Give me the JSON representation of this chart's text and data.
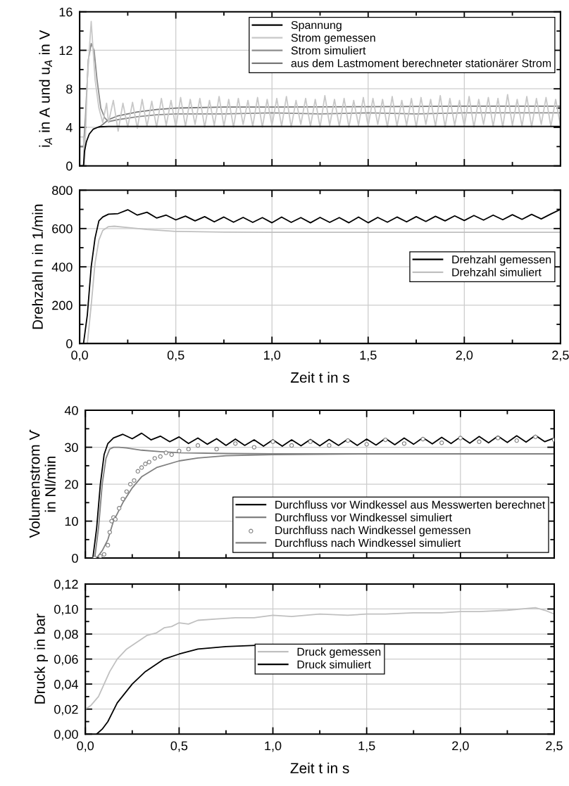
{
  "chart_data": [
    {
      "type": "line",
      "ylabel": "i$_{A}$ in A und u$_{A}$ in V",
      "xlim": [
        0,
        2.5
      ],
      "xticks": [
        0,
        {
          "value": 0.25,
          "label": null
        },
        0.5,
        {
          "value": 0.75,
          "label": null
        },
        1,
        {
          "value": 1.25,
          "label": null
        },
        1.5,
        {
          "value": 1.75,
          "label": null
        },
        2,
        {
          "value": 2.25,
          "label": null
        },
        2.5
      ],
      "ylim": [
        0,
        16
      ],
      "yticks": [
        0,
        {
          "value": 2,
          "label": null
        },
        4,
        {
          "value": 6,
          "label": null
        },
        8,
        {
          "value": 10,
          "label": null
        },
        12,
        {
          "value": 14,
          "label": null
        },
        16
      ],
      "tick_labels": "y",
      "grid": true,
      "legend": "top right",
      "series": [
        {
          "name": "Spannung",
          "color": "#000000",
          "x": [
            0,
            0.02,
            0.025,
            0.035,
            0.05,
            0.07,
            0.1,
            0.15,
            0.3,
            0.5,
            1.0,
            1.5,
            2.0,
            2.5
          ],
          "values": [
            0,
            0,
            1.5,
            2.5,
            3.3,
            3.8,
            4.05,
            4.1,
            4.1,
            4.1,
            4.1,
            4.1,
            4.1,
            4.1
          ]
        },
        {
          "name": "Strom gemessen",
          "color": "#c8c8c8",
          "x": [
            0,
            0.02,
            0.025,
            0.04,
            0.06,
            0.07,
            0.08,
            0.1,
            0.12,
            0.14,
            0.15,
            0.175,
            0.2,
            0.225,
            0.25,
            0.275,
            0.3,
            0.325,
            0.35,
            0.375,
            0.4,
            0.425,
            0.45,
            0.475,
            0.5,
            0.525,
            0.55,
            0.575,
            0.6,
            0.625,
            0.65,
            0.675,
            0.7,
            0.725,
            0.75,
            0.775,
            0.8,
            0.825,
            0.85,
            0.875,
            0.9,
            0.925,
            0.95,
            0.975,
            1.0,
            1.025,
            1.05,
            1.075,
            1.1,
            1.125,
            1.15,
            1.175,
            1.2,
            1.225,
            1.25,
            1.275,
            1.3,
            1.325,
            1.35,
            1.375,
            1.4,
            1.425,
            1.45,
            1.475,
            1.5,
            1.525,
            1.55,
            1.575,
            1.6,
            1.625,
            1.65,
            1.675,
            1.7,
            1.725,
            1.75,
            1.775,
            1.8,
            1.825,
            1.85,
            1.875,
            1.9,
            1.925,
            1.95,
            1.975,
            2.0,
            2.025,
            2.05,
            2.075,
            2.1,
            2.125,
            2.15,
            2.175,
            2.2,
            2.225,
            2.25,
            2.275,
            2.3,
            2.325,
            2.35,
            2.375,
            2.4,
            2.425,
            2.45,
            2.475,
            2.5
          ],
          "values": [
            3,
            3,
            0,
            9,
            15,
            12,
            9,
            6,
            4.5,
            6.5,
            4.5,
            6.8,
            3.6,
            6.5,
            4.0,
            6.6,
            3.9,
            6.9,
            4.1,
            6.7,
            4.0,
            7.0,
            4.2,
            6.8,
            4.0,
            7.1,
            4.1,
            6.9,
            4.3,
            7.0,
            4.0,
            6.8,
            4.2,
            7.2,
            4.1,
            6.9,
            4.0,
            7.0,
            4.3,
            6.8,
            4.1,
            7.1,
            4.0,
            6.9,
            4.2,
            7.0,
            4.1,
            7.2,
            4.0,
            6.8,
            4.3,
            7.0,
            4.1,
            6.9,
            4.0,
            7.3,
            4.2,
            6.9,
            4.1,
            7.0,
            4.0,
            6.8,
            4.2,
            7.1,
            4.1,
            7.0,
            4.3,
            6.9,
            4.0,
            7.2,
            4.1,
            6.8,
            4.2,
            7.0,
            4.0,
            7.1,
            4.3,
            6.9,
            4.1,
            7.3,
            4.0,
            7.0,
            4.2,
            6.8,
            4.1,
            7.2,
            4.0,
            6.9,
            4.3,
            7.1,
            4.1,
            7.0,
            4.0,
            7.4,
            4.2,
            6.9,
            4.1,
            7.2,
            4.0,
            7.0,
            4.3,
            7.1,
            4.1,
            6.9,
            4.2
          ]
        },
        {
          "name": "Strom simuliert",
          "color": "#8c8c8c",
          "x": [
            0,
            0.02,
            0.03,
            0.045,
            0.06,
            0.075,
            0.09,
            0.11,
            0.13,
            0.15,
            0.2,
            0.3,
            0.4,
            0.5,
            0.75,
            1.0,
            1.25,
            1.5,
            1.75,
            2.0,
            2.25,
            2.5
          ],
          "values": [
            2,
            2,
            5,
            11,
            12.7,
            12,
            9,
            6,
            5,
            4.6,
            4.8,
            5.1,
            5.3,
            5.4,
            5.4,
            5.5,
            5.4,
            5.5,
            5.4,
            5.5,
            5.5,
            5.5
          ]
        },
        {
          "name": "aus dem Lastmoment berechneter stationärer Strom",
          "color": "#787878",
          "x": [
            0.1,
            0.12,
            0.15,
            0.2,
            0.3,
            0.4,
            0.5,
            0.75,
            1.0,
            1.5,
            2.0,
            2.5
          ],
          "values": [
            4,
            4.3,
            4.8,
            5.2,
            5.6,
            5.85,
            6,
            6.1,
            6.1,
            6.15,
            6.2,
            6.2
          ]
        }
      ]
    },
    {
      "type": "line",
      "xlabel": "Zeit t in s",
      "ylabel": "Drehzahl n in 1/min",
      "xlim": [
        0,
        2.5
      ],
      "xticks": [
        {
          "value": 0,
          "label": "0,0"
        },
        {
          "value": 0.25,
          "label": null
        },
        {
          "value": 0.5,
          "label": "0,5"
        },
        {
          "value": 0.75,
          "label": null
        },
        {
          "value": 1,
          "label": "1,0"
        },
        {
          "value": 1.25,
          "label": null
        },
        {
          "value": 1.5,
          "label": "1,5"
        },
        {
          "value": 1.75,
          "label": null
        },
        {
          "value": 2,
          "label": "2,0"
        },
        {
          "value": 2.25,
          "label": null
        },
        {
          "value": 2.5,
          "label": "2,5"
        }
      ],
      "ylim": [
        0,
        800
      ],
      "yticks": [
        0,
        {
          "value": 100,
          "label": null
        },
        200,
        {
          "value": 300,
          "label": null
        },
        400,
        {
          "value": 500,
          "label": null
        },
        600,
        {
          "value": 700,
          "label": null
        },
        800
      ],
      "grid": true,
      "legend": "right",
      "series": [
        {
          "name": "Drehzahl gemessen",
          "color": "#000000",
          "x": [
            0.02,
            0.04,
            0.06,
            0.08,
            0.1,
            0.12,
            0.15,
            0.2,
            0.25,
            0.3,
            0.35,
            0.4,
            0.45,
            0.5,
            0.55,
            0.6,
            0.65,
            0.7,
            0.75,
            0.8,
            0.85,
            0.9,
            0.95,
            1.0,
            1.05,
            1.1,
            1.15,
            1.2,
            1.25,
            1.3,
            1.35,
            1.4,
            1.45,
            1.5,
            1.55,
            1.6,
            1.65,
            1.7,
            1.75,
            1.8,
            1.85,
            1.9,
            1.95,
            2.0,
            2.05,
            2.1,
            2.15,
            2.2,
            2.25,
            2.3,
            2.35,
            2.4,
            2.45,
            2.5
          ],
          "values": [
            0,
            150,
            400,
            550,
            640,
            660,
            675,
            678,
            698,
            670,
            685,
            655,
            670,
            645,
            665,
            640,
            662,
            635,
            660,
            633,
            658,
            632,
            657,
            630,
            660,
            632,
            657,
            630,
            658,
            632,
            657,
            630,
            660,
            630,
            658,
            633,
            660,
            635,
            662,
            637,
            664,
            640,
            666,
            642,
            668,
            644,
            670,
            646,
            672,
            648,
            674,
            650,
            676,
            700
          ]
        },
        {
          "name": "Drehzahl simuliert",
          "color": "#c0c0c0",
          "x": [
            0.04,
            0.06,
            0.08,
            0.1,
            0.12,
            0.15,
            0.18,
            0.25,
            0.35,
            0.5,
            0.75,
            1.0,
            1.5,
            2.0,
            2.5
          ],
          "values": [
            0,
            200,
            420,
            540,
            590,
            610,
            612,
            605,
            595,
            585,
            581,
            580,
            580,
            580,
            580
          ]
        }
      ]
    },
    {
      "type": "line",
      "ylabel": "Volumenstrom V̇\nin Nl/min",
      "xlim": [
        0,
        2.5
      ],
      "xticks": [
        0,
        {
          "value": 0.25,
          "label": null
        },
        0.5,
        {
          "value": 0.75,
          "label": null
        },
        1,
        {
          "value": 1.25,
          "label": null
        },
        1.5,
        {
          "value": 1.75,
          "label": null
        },
        2,
        {
          "value": 2.25,
          "label": null
        },
        2.5
      ],
      "ylim": [
        0,
        40
      ],
      "yticks": [
        0,
        {
          "value": 5,
          "label": null
        },
        10,
        {
          "value": 15,
          "label": null
        },
        20,
        {
          "value": 25,
          "label": null
        },
        30,
        {
          "value": 35,
          "label": null
        },
        40
      ],
      "tick_labels": "y",
      "grid": true,
      "legend": "bottom right",
      "series": [
        {
          "name": "Durchfluss vor Windkessel aus Messwerten berechnet",
          "color": "#000000",
          "x": [
            0.04,
            0.06,
            0.08,
            0.1,
            0.12,
            0.15,
            0.2,
            0.25,
            0.3,
            0.35,
            0.4,
            0.45,
            0.5,
            0.55,
            0.6,
            0.65,
            0.7,
            0.75,
            0.8,
            0.85,
            0.9,
            0.95,
            1.0,
            1.05,
            1.1,
            1.15,
            1.2,
            1.25,
            1.3,
            1.35,
            1.4,
            1.45,
            1.5,
            1.55,
            1.6,
            1.65,
            1.7,
            1.75,
            1.8,
            1.85,
            1.9,
            1.95,
            2.0,
            2.05,
            2.1,
            2.15,
            2.2,
            2.25,
            2.3,
            2.35,
            2.4,
            2.45,
            2.5
          ],
          "values": [
            0,
            8,
            20,
            28,
            31,
            32.5,
            33.5,
            32.3,
            33.8,
            32,
            33,
            31.5,
            32.8,
            31,
            32.5,
            30.8,
            32.3,
            30.5,
            32.2,
            30.5,
            32,
            30.3,
            32,
            30.3,
            32,
            30.4,
            32.1,
            30.4,
            32.1,
            30.5,
            32.2,
            30.5,
            32.2,
            30.6,
            32.4,
            30.7,
            32.5,
            30.8,
            32.6,
            30.9,
            32.7,
            31,
            32.8,
            31.1,
            32.9,
            31.2,
            33,
            31.3,
            33.1,
            31.4,
            33.2,
            31.5,
            32.5
          ]
        },
        {
          "name": "Durchfluss vor Windkessel simuliert",
          "color": "#808080",
          "x": [
            0.05,
            0.07,
            0.09,
            0.11,
            0.13,
            0.15,
            0.18,
            0.22,
            0.3,
            0.4,
            0.5,
            0.75,
            1.0,
            1.5,
            2.0,
            2.5
          ],
          "values": [
            0,
            8,
            20,
            27,
            29.5,
            30,
            30,
            29.8,
            29.2,
            28.8,
            28.5,
            28.3,
            28.2,
            28.2,
            28.2,
            28.2
          ]
        },
        {
          "name": "Durchfluss nach Windkessel gemessen",
          "type": "scatter",
          "marker": "circle",
          "color": "#808080",
          "x": [
            0.05,
            0.08,
            0.1,
            0.12,
            0.13,
            0.14,
            0.15,
            0.16,
            0.18,
            0.2,
            0.22,
            0.24,
            0.26,
            0.28,
            0.3,
            0.32,
            0.34,
            0.37,
            0.4,
            0.43,
            0.46,
            0.5,
            0.55,
            0.6,
            0.7,
            0.8,
            0.9,
            1.0,
            1.1,
            1.2,
            1.3,
            1.4,
            1.5,
            1.6,
            1.7,
            1.8,
            1.9,
            2.0,
            2.1,
            2.2,
            2.3,
            2.4,
            2.5
          ],
          "values": [
            0,
            0.5,
            1,
            3.5,
            7,
            10,
            11,
            10.5,
            13.5,
            16,
            18,
            20,
            21,
            23.5,
            24.5,
            25.5,
            26,
            27,
            27.5,
            28.5,
            28,
            29,
            29.5,
            30.5,
            29.5,
            31,
            30,
            31.5,
            30.5,
            31.5,
            30.5,
            31.8,
            30.8,
            32,
            31,
            32.2,
            31.2,
            32.5,
            31.5,
            32.5,
            31.8,
            32.8,
            32
          ]
        },
        {
          "name": "Durchfluss nach Windkessel simuliert",
          "color": "#808080",
          "x": [
            0.06,
            0.09,
            0.12,
            0.15,
            0.2,
            0.25,
            0.3,
            0.38,
            0.5,
            0.6,
            0.75,
            1.0,
            1.5,
            2.0,
            2.5
          ],
          "values": [
            0,
            2,
            5,
            10,
            15,
            19,
            22,
            24.5,
            26.3,
            27.1,
            27.7,
            28,
            28.2,
            28.2,
            28.2
          ]
        }
      ]
    },
    {
      "type": "line",
      "xlabel": "Zeit t in s",
      "ylabel": "Druck p in bar",
      "xlim": [
        0,
        2.5
      ],
      "xticks": [
        {
          "value": 0,
          "label": "0,0"
        },
        {
          "value": 0.25,
          "label": null
        },
        {
          "value": 0.5,
          "label": "0,5"
        },
        {
          "value": 0.75,
          "label": null
        },
        {
          "value": 1,
          "label": "1,0"
        },
        {
          "value": 1.25,
          "label": null
        },
        {
          "value": 1.5,
          "label": "1,5"
        },
        {
          "value": 1.75,
          "label": null
        },
        {
          "value": 2,
          "label": "2,0"
        },
        {
          "value": 2.25,
          "label": null
        },
        {
          "value": 2.5,
          "label": "2,5"
        }
      ],
      "ylim": [
        0,
        0.12
      ],
      "yticks": [
        {
          "value": 0,
          "label": "0,00"
        },
        {
          "value": 0.01,
          "label": null
        },
        {
          "value": 0.02,
          "label": "0,02"
        },
        {
          "value": 0.03,
          "label": null
        },
        {
          "value": 0.04,
          "label": "0,04"
        },
        {
          "value": 0.05,
          "label": null
        },
        {
          "value": 0.06,
          "label": "0,06"
        },
        {
          "value": 0.07,
          "label": null
        },
        {
          "value": 0.08,
          "label": "0,08"
        },
        {
          "value": 0.09,
          "label": null
        },
        {
          "value": 0.1,
          "label": "0,10"
        },
        {
          "value": 0.11,
          "label": null
        },
        {
          "value": 0.12,
          "label": "0,12"
        }
      ],
      "grid": true,
      "legend": "center",
      "series": [
        {
          "name": "Druck gemessen",
          "color": "#c0c0c0",
          "x": [
            0,
            0.03,
            0.07,
            0.1,
            0.13,
            0.17,
            0.22,
            0.27,
            0.33,
            0.38,
            0.42,
            0.46,
            0.5,
            0.55,
            0.6,
            0.7,
            0.8,
            0.9,
            1.0,
            1.1,
            1.25,
            1.4,
            1.5,
            1.6,
            1.75,
            1.9,
            2.0,
            2.1,
            2.25,
            2.4,
            2.45,
            2.5
          ],
          "values": [
            0.02,
            0.023,
            0.03,
            0.04,
            0.05,
            0.06,
            0.068,
            0.073,
            0.079,
            0.081,
            0.085,
            0.086,
            0.089,
            0.088,
            0.091,
            0.092,
            0.093,
            0.093,
            0.095,
            0.094,
            0.096,
            0.095,
            0.096,
            0.096,
            0.097,
            0.097,
            0.098,
            0.098,
            0.099,
            0.101,
            0.099,
            0.096
          ]
        },
        {
          "name": "Druck simuliert",
          "color": "#000000",
          "x": [
            0.06,
            0.09,
            0.12,
            0.17,
            0.25,
            0.32,
            0.42,
            0.5,
            0.6,
            0.75,
            1.0,
            1.5,
            2.0,
            2.5
          ],
          "values": [
            0,
            0.004,
            0.01,
            0.025,
            0.04,
            0.05,
            0.06,
            0.064,
            0.068,
            0.07,
            0.0715,
            0.072,
            0.072,
            0.072
          ]
        }
      ]
    }
  ]
}
